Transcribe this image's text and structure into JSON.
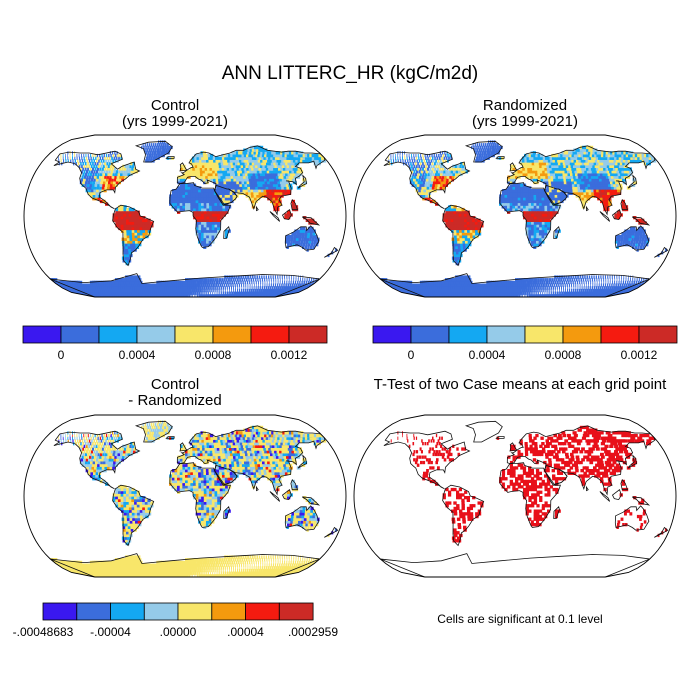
{
  "figure": {
    "title": "ANN LITTERC_HR (kgC/m2d)",
    "note": "Cells are significant at 0.1 level"
  },
  "panels": [
    {
      "id": "control",
      "title_line1": "Control",
      "title_line2": "(yrs 1999-2021)"
    },
    {
      "id": "randomized",
      "title_line1": "Randomized",
      "title_line2": "(yrs 1999-2021)"
    },
    {
      "id": "difference",
      "title_line1": "Control",
      "title_line2": "- Randomized"
    },
    {
      "id": "ttest",
      "title_line1": "T-Test of two Case means at each grid point",
      "title_line2": ""
    }
  ],
  "chart_data": [
    {
      "type": "heatmap",
      "title": "Control (yrs 1999-2021)",
      "colorbar": {
        "colors": [
          "#3a18f0",
          "#3b6ddc",
          "#14a8f2",
          "#95cbe9",
          "#f8e66a",
          "#f49a0e",
          "#f51b10",
          "#cc2a26"
        ],
        "tick_labels": [
          "0",
          "0.0004",
          "0.0008",
          "0.0012"
        ]
      }
    },
    {
      "type": "heatmap",
      "title": "Randomized (yrs 1999-2021)",
      "colorbar": {
        "colors": [
          "#3a18f0",
          "#3b6ddc",
          "#14a8f2",
          "#95cbe9",
          "#f8e66a",
          "#f49a0e",
          "#f51b10",
          "#cc2a26"
        ],
        "tick_labels": [
          "0",
          "0.0004",
          "0.0008",
          "0.0012"
        ]
      }
    },
    {
      "type": "heatmap",
      "title": "Control - Randomized",
      "colorbar": {
        "colors": [
          "#3a18f0",
          "#3b6ddc",
          "#14a8f2",
          "#95cbe9",
          "#f8e66a",
          "#f49a0e",
          "#f51b10",
          "#cc2a26"
        ],
        "tick_labels": [
          "-.00048683",
          "-.00004",
          ".00000",
          ".00004",
          ".0002959"
        ]
      }
    },
    {
      "type": "heatmap",
      "title": "T-Test of two Case means at each grid point",
      "significant_color": "#e8101a"
    }
  ]
}
